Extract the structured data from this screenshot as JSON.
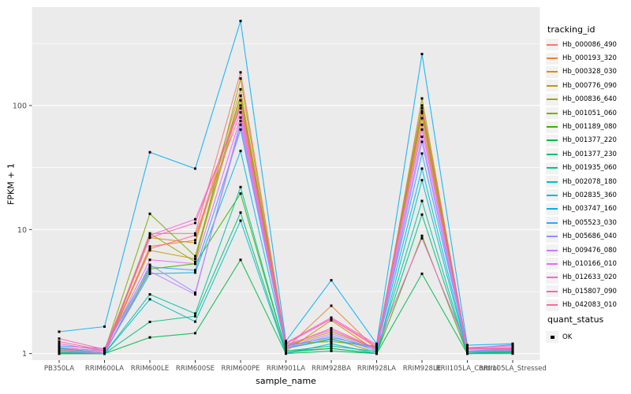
{
  "chart_data": {
    "type": "line",
    "title": "",
    "xlabel": "sample_name",
    "ylabel": "FPKM + 1",
    "yscale": "log10",
    "ylim": [
      0.89,
      620
    ],
    "ytick_labels": [
      "1",
      "10",
      "100"
    ],
    "ytick_values": [
      1,
      10,
      100
    ],
    "minor_grid_values": [
      3.162,
      31.62,
      316.2
    ],
    "grid": true,
    "legend_position": "right",
    "panel_bg": "#EBEBEB",
    "grid_color": "#FFFFFF",
    "tick_color": "#333333",
    "tick_label_color": "#4D4D4D",
    "point_color": "#000000",
    "categories": [
      "PB350LA",
      "RRIM600LA",
      "RRIM600LE",
      "RRIM600SE",
      "RRIM600PE",
      "RRIM901LA",
      "RRIM928BA",
      "RRIM928LA",
      "RRIM928LE",
      "RRII105LA_Control",
      "RRII105LA_Stressed"
    ],
    "series": [
      {
        "name": "Hb_000086_490",
        "color": "#F8766D",
        "values": [
          1.1,
          1.02,
          9.3,
          9.3,
          185,
          1.2,
          1.9,
          1.12,
          100,
          1.1,
          1.1
        ]
      },
      {
        "name": "Hb_000193_320",
        "color": "#EA8331",
        "values": [
          1.05,
          1.0,
          7.3,
          8.2,
          135,
          1.1,
          2.43,
          1.08,
          87,
          1.05,
          1.06
        ]
      },
      {
        "name": "Hb_000328_030",
        "color": "#D89000",
        "values": [
          1.02,
          1.0,
          8.6,
          7.8,
          120,
          1.05,
          1.85,
          1.05,
          95,
          1.0,
          1.03
        ]
      },
      {
        "name": "Hb_000776_090",
        "color": "#C09B00",
        "values": [
          1.06,
          1.02,
          6.8,
          5.8,
          110,
          1.15,
          1.5,
          1.1,
          79,
          1.03,
          1.05
        ]
      },
      {
        "name": "Hb_000836_640",
        "color": "#A3A500",
        "values": [
          1.0,
          1.0,
          9.3,
          5.5,
          165,
          1.1,
          1.32,
          1.02,
          114,
          1.05,
          1.02
        ]
      },
      {
        "name": "Hb_001051_060",
        "color": "#7CAE00",
        "values": [
          1.12,
          1.05,
          13.4,
          6.1,
          120,
          1.2,
          1.25,
          1.15,
          90,
          1.1,
          1.1
        ]
      },
      {
        "name": "Hb_001189_080",
        "color": "#39B600",
        "values": [
          1.0,
          1.0,
          4.8,
          5.3,
          19.5,
          1.05,
          1.1,
          1.0,
          8.9,
          1.0,
          1.02
        ]
      },
      {
        "name": "Hb_001377_220",
        "color": "#00BB4E",
        "values": [
          1.0,
          1.0,
          1.35,
          1.46,
          5.7,
          1.0,
          1.05,
          1.0,
          4.4,
          1.0,
          1.0
        ]
      },
      {
        "name": "Hb_001377_230",
        "color": "#00BF7D",
        "values": [
          1.0,
          1.0,
          1.8,
          2.0,
          13.7,
          1.02,
          1.1,
          1.0,
          13.2,
          1.0,
          1.05
        ]
      },
      {
        "name": "Hb_001935_060",
        "color": "#00C1A3",
        "values": [
          1.02,
          1.0,
          3.0,
          2.1,
          22,
          1.05,
          1.15,
          1.04,
          17,
          1.0,
          1.02
        ]
      },
      {
        "name": "Hb_002078_180",
        "color": "#00BFC4",
        "values": [
          1.05,
          1.0,
          2.74,
          1.81,
          11.8,
          1.0,
          1.2,
          1.0,
          25,
          1.02,
          1.04
        ]
      },
      {
        "name": "Hb_002835_360",
        "color": "#00BAE0",
        "values": [
          1.1,
          1.02,
          4.4,
          4.5,
          43,
          1.1,
          1.3,
          1.1,
          31,
          1.05,
          1.08
        ]
      },
      {
        "name": "Hb_003747_160",
        "color": "#00B0F6",
        "values": [
          1.5,
          1.65,
          42,
          31,
          480,
          1.26,
          3.9,
          1.2,
          260,
          1.17,
          1.2
        ]
      },
      {
        "name": "Hb_005523_030",
        "color": "#35A2FF",
        "values": [
          1.15,
          1.1,
          5.0,
          4.7,
          64,
          1.15,
          1.35,
          1.12,
          41,
          1.1,
          1.18
        ]
      },
      {
        "name": "Hb_005686_040",
        "color": "#9590FF",
        "values": [
          1.05,
          1.0,
          5.2,
          3.1,
          70,
          1.1,
          1.4,
          1.05,
          51,
          1.05,
          1.1
        ]
      },
      {
        "name": "Hb_009476_080",
        "color": "#C77CFF",
        "values": [
          1.08,
          1.02,
          4.6,
          3.0,
          75,
          1.12,
          1.45,
          1.08,
          56,
          1.04,
          1.06
        ]
      },
      {
        "name": "Hb_010166_010",
        "color": "#E76BF3",
        "values": [
          1.12,
          1.05,
          5.7,
          5.3,
          80,
          1.18,
          1.55,
          1.1,
          64,
          1.08,
          1.1
        ]
      },
      {
        "name": "Hb_012633_020",
        "color": "#FA62DB",
        "values": [
          1.2,
          1.05,
          9.0,
          12.1,
          95,
          1.2,
          1.9,
          1.15,
          8.5,
          1.1,
          1.12
        ]
      },
      {
        "name": "Hb_015807_090",
        "color": "#FF62BC",
        "values": [
          1.32,
          1.08,
          8.6,
          11.3,
          100,
          1.22,
          1.95,
          1.18,
          70,
          1.12,
          1.15
        ]
      },
      {
        "name": "Hb_042083_010",
        "color": "#FF6A98",
        "values": [
          1.25,
          1.06,
          7.0,
          9.0,
          88,
          1.15,
          1.6,
          1.1,
          100,
          1.1,
          1.1
        ]
      }
    ],
    "legend": {
      "color_legend_title": "tracking_id",
      "shape_legend_title": "quant_status",
      "shape_entries": [
        {
          "label": "OK",
          "marker": "square",
          "color": "#000000"
        }
      ]
    }
  }
}
